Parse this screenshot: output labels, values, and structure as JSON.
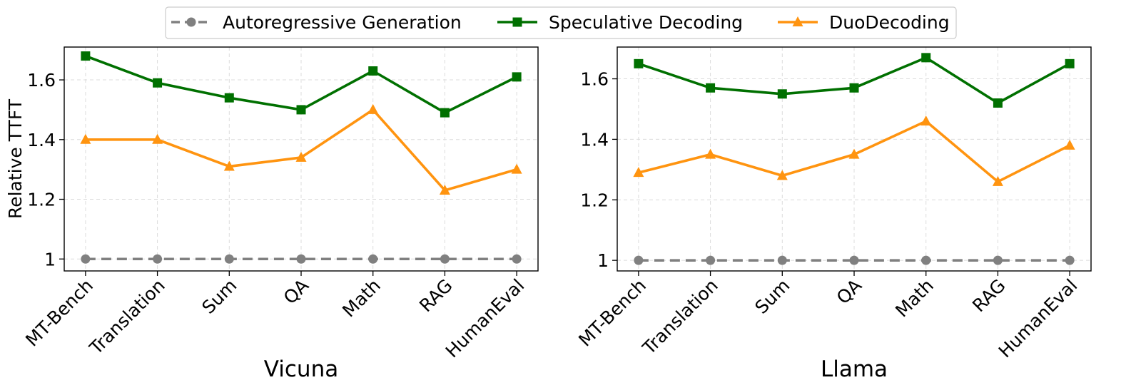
{
  "chart_data": [
    {
      "type": "line",
      "title": "",
      "xlabel": "Vicuna",
      "ylabel": "Relative TTFT",
      "categories": [
        "MT-Bench",
        "Translation",
        "Sum",
        "QA",
        "Math",
        "RAG",
        "HumanEval"
      ],
      "ylim": [
        0.96,
        1.71
      ],
      "yticks": [
        1.0,
        1.2,
        1.4,
        1.6
      ],
      "grid": true,
      "series": [
        {
          "name": "Autoregressive Generation",
          "values": [
            1.0,
            1.0,
            1.0,
            1.0,
            1.0,
            1.0,
            1.0
          ]
        },
        {
          "name": "Speculative Decoding",
          "values": [
            1.68,
            1.59,
            1.54,
            1.5,
            1.63,
            1.49,
            1.61
          ]
        },
        {
          "name": "DuoDecoding",
          "values": [
            1.4,
            1.4,
            1.31,
            1.34,
            1.5,
            1.23,
            1.3
          ]
        }
      ]
    },
    {
      "type": "line",
      "title": "",
      "xlabel": "Llama",
      "ylabel": "",
      "categories": [
        "MT-Bench",
        "Translation",
        "Sum",
        "QA",
        "Math",
        "RAG",
        "HumanEval"
      ],
      "ylim": [
        0.965,
        1.705
      ],
      "yticks": [
        1.0,
        1.2,
        1.4,
        1.6
      ],
      "grid": true,
      "series": [
        {
          "name": "Autoregressive Generation",
          "values": [
            1.0,
            1.0,
            1.0,
            1.0,
            1.0,
            1.0,
            1.0
          ]
        },
        {
          "name": "Speculative Decoding",
          "values": [
            1.65,
            1.57,
            1.55,
            1.57,
            1.67,
            1.52,
            1.65
          ]
        },
        {
          "name": "DuoDecoding",
          "values": [
            1.29,
            1.35,
            1.28,
            1.35,
            1.46,
            1.26,
            1.38
          ]
        }
      ]
    }
  ],
  "legend": {
    "position": "top-center",
    "entries": [
      {
        "label": "Autoregressive Generation",
        "color": "#808080",
        "marker": "circle",
        "dash": true
      },
      {
        "label": "Speculative Decoding",
        "color": "#007000",
        "marker": "square",
        "dash": false
      },
      {
        "label": "DuoDecoding",
        "color": "#ff9410",
        "marker": "triangle",
        "dash": false
      }
    ]
  },
  "colors": {
    "autoregressive": "#808080",
    "speculative": "#007000",
    "duo": "#ff9410",
    "grid": "#dcdcdc"
  }
}
